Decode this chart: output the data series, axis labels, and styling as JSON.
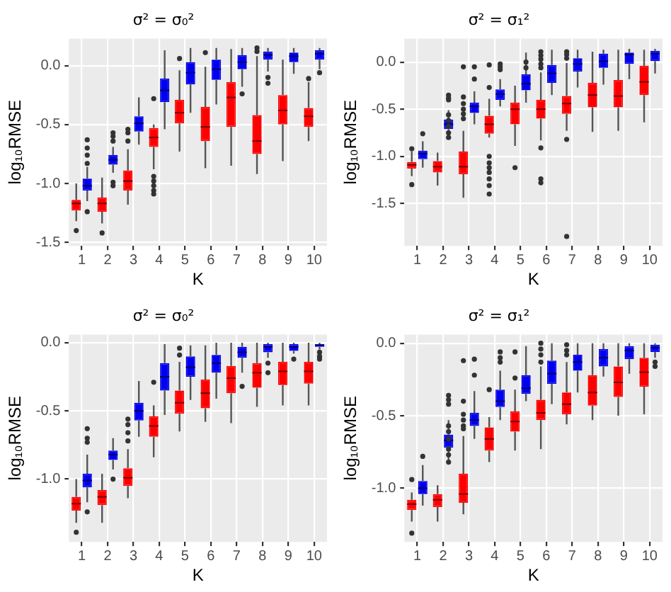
{
  "chart_data": [
    {
      "type": "box",
      "title": "σ² = σ₀²",
      "xlabel": "K",
      "ylabel": "log₁₀RMSE",
      "categories": [
        "1",
        "2",
        "3",
        "4",
        "5",
        "6",
        "7",
        "8",
        "9",
        "10"
      ],
      "ylim": [
        -1.53,
        0.23
      ],
      "yticks": [
        {
          "value": -1.5,
          "label": "-1.5"
        },
        {
          "value": -1,
          "label": "-1.0"
        },
        {
          "value": -0.5,
          "label": "-0.5"
        },
        {
          "value": 0,
          "label": "0.0"
        }
      ],
      "grid": true,
      "series": [
        {
          "color": "#ff0000",
          "boxes": [
            {
              "low": -1.32,
              "q1": -1.23,
              "median": -1.17,
              "q3": -1.14,
              "high": -1.0,
              "outliers": [
                -1.4
              ]
            },
            {
              "low": -1.34,
              "q1": -1.24,
              "median": -1.17,
              "q3": -1.12,
              "high": -0.95,
              "outliers": [
                -1.42
              ]
            },
            {
              "low": -1.18,
              "q1": -1.06,
              "median": -0.98,
              "q3": -0.89,
              "high": -0.71,
              "outliers": [
                -0.54,
                -0.57,
                -0.64
              ]
            },
            {
              "low": -0.88,
              "q1": -0.69,
              "median": -0.61,
              "q3": -0.53,
              "high": -0.5,
              "outliers": [
                -0.28,
                -0.94,
                -0.98,
                -1.02,
                -1.06,
                -1.09
              ]
            },
            {
              "low": -0.73,
              "q1": -0.49,
              "median": -0.4,
              "q3": -0.29,
              "high": -0.04,
              "outliers": [
                0.06
              ]
            },
            {
              "low": -0.87,
              "q1": -0.64,
              "median": -0.52,
              "q3": -0.35,
              "high": -0.01,
              "outliers": [
                0.11
              ]
            },
            {
              "low": -0.85,
              "q1": -0.52,
              "median": -0.27,
              "q3": -0.14,
              "high": 0.14
            },
            {
              "low": -0.92,
              "q1": -0.75,
              "median": -0.64,
              "q3": -0.42,
              "high": 0.08,
              "outliers": [
                0.15,
                0.12
              ]
            },
            {
              "low": -0.81,
              "q1": -0.5,
              "median": -0.38,
              "q3": -0.25,
              "high": 0.05
            },
            {
              "low": -0.64,
              "q1": -0.52,
              "median": -0.43,
              "q3": -0.36,
              "high": -0.14,
              "outliers": [
                -0.11
              ]
            }
          ]
        },
        {
          "color": "#0000ee",
          "boxes": [
            {
              "low": -1.15,
              "q1": -1.06,
              "median": -1.02,
              "q3": -0.96,
              "high": -0.86,
              "outliers": [
                -0.63,
                -0.7,
                -0.76,
                -0.83,
                -1.24
              ]
            },
            {
              "low": -0.91,
              "q1": -0.84,
              "median": -0.8,
              "q3": -0.76,
              "high": -0.69,
              "outliers": [
                -0.57,
                -0.6,
                -0.64,
                -0.99,
                -1.02
              ]
            },
            {
              "low": -0.67,
              "q1": -0.56,
              "median": -0.49,
              "q3": -0.43,
              "high": -0.27
            },
            {
              "low": -0.54,
              "q1": -0.31,
              "median": -0.21,
              "q3": -0.11,
              "high": 0.13
            },
            {
              "low": -0.4,
              "q1": -0.16,
              "median": -0.06,
              "q3": 0.03,
              "high": 0.15
            },
            {
              "low": -0.33,
              "q1": -0.12,
              "median": -0.03,
              "q3": 0.05,
              "high": 0.15
            },
            {
              "low": -0.18,
              "q1": -0.03,
              "median": 0.03,
              "q3": 0.09,
              "high": 0.15,
              "outliers": [
                -0.24
              ]
            },
            {
              "low": -0.05,
              "q1": 0.05,
              "median": 0.09,
              "q3": 0.12,
              "high": 0.15,
              "outliers": [
                -0.1,
                -0.15
              ]
            },
            {
              "low": -0.07,
              "q1": 0.03,
              "median": 0.08,
              "q3": 0.11,
              "high": 0.15
            },
            {
              "low": -0.03,
              "q1": 0.05,
              "median": 0.1,
              "q3": 0.13,
              "high": 0.15,
              "outliers": [
                -0.06
              ]
            }
          ]
        }
      ]
    },
    {
      "type": "box",
      "title": "σ² = σ₁²",
      "xlabel": "K",
      "ylabel": "log₁₀RMSE",
      "categories": [
        "1",
        "2",
        "3",
        "4",
        "5",
        "6",
        "7",
        "8",
        "9",
        "10"
      ],
      "ylim": [
        -1.95,
        0.25
      ],
      "yticks": [
        {
          "value": -1.5,
          "label": "-1.5"
        },
        {
          "value": -1,
          "label": "-1.0"
        },
        {
          "value": -0.5,
          "label": "-0.5"
        },
        {
          "value": 0,
          "label": "0.0"
        }
      ],
      "grid": true,
      "series": [
        {
          "color": "#ff0000",
          "boxes": [
            {
              "low": -1.21,
              "q1": -1.13,
              "median": -1.09,
              "q3": -1.06,
              "high": -0.95,
              "outliers": [
                -0.92,
                -1.3
              ]
            },
            {
              "low": -1.31,
              "q1": -1.17,
              "median": -1.11,
              "q3": -1.05,
              "high": -0.96
            },
            {
              "low": -1.44,
              "q1": -1.19,
              "median": -1.11,
              "q3": -0.95,
              "high": -0.73,
              "outliers": [
                -0.05,
                -0.37,
                -0.44,
                -0.5,
                -0.55,
                -0.6
              ]
            },
            {
              "low": -0.8,
              "q1": -0.76,
              "median": -0.66,
              "q3": -0.57,
              "high": -0.39,
              "outliers": [
                -0.03,
                -0.27,
                -1.0,
                -1.07,
                -1.12,
                -1.17,
                -1.24,
                -1.31,
                -1.4
              ]
            },
            {
              "low": -0.89,
              "q1": -0.66,
              "median": -0.5,
              "q3": -0.43,
              "high": -0.25,
              "outliers": [
                -1.12
              ]
            },
            {
              "low": -0.83,
              "q1": -0.6,
              "median": -0.5,
              "q3": -0.4,
              "high": -0.11,
              "outliers": [
                0.11,
                0.07,
                0.03,
                -0.02,
                -0.06,
                -0.91,
                -1.24,
                -1.28
              ]
            },
            {
              "low": -0.73,
              "q1": -0.55,
              "median": -0.44,
              "q3": -0.36,
              "high": -0.01,
              "outliers": [
                0.11,
                0.08,
                0.04,
                -0.82,
                -1.85
              ]
            },
            {
              "low": -0.74,
              "q1": -0.48,
              "median": -0.35,
              "q3": -0.22,
              "high": 0.11
            },
            {
              "low": -0.73,
              "q1": -0.48,
              "median": -0.36,
              "q3": -0.19,
              "high": 0.13
            },
            {
              "low": -0.64,
              "q1": -0.35,
              "median": -0.21,
              "q3": -0.04,
              "high": 0.13
            }
          ]
        },
        {
          "color": "#0000ee",
          "boxes": [
            {
              "low": -1.12,
              "q1": -1.03,
              "median": -0.97,
              "q3": -0.94,
              "high": -0.84,
              "outliers": [
                -0.76
              ]
            },
            {
              "low": -0.75,
              "q1": -0.71,
              "median": -0.66,
              "q3": -0.61,
              "high": -0.51,
              "outliers": [
                -0.35,
                -0.38,
                -0.4,
                -0.56,
                -0.62,
                -0.68,
                -0.75,
                -0.8
              ]
            },
            {
              "low": -0.66,
              "q1": -0.54,
              "median": -0.47,
              "q3": -0.43,
              "high": -0.31,
              "outliers": [
                -0.05,
                -0.18
              ]
            },
            {
              "low": -0.47,
              "q1": -0.4,
              "median": -0.34,
              "q3": -0.29,
              "high": -0.18,
              "outliers": [
                -0.02,
                -0.05,
                -0.08
              ]
            },
            {
              "low": -0.43,
              "q1": -0.3,
              "median": -0.23,
              "q3": -0.13,
              "high": 0.1,
              "outliers": [
                0,
                -0.06
              ]
            },
            {
              "low": -0.35,
              "q1": -0.22,
              "median": -0.12,
              "q3": -0.03,
              "high": 0.13
            },
            {
              "low": -0.27,
              "q1": -0.1,
              "median": -0.02,
              "q3": 0.04,
              "high": 0.13
            },
            {
              "low": -0.24,
              "q1": -0.06,
              "median": 0.01,
              "q3": 0.09,
              "high": 0.13
            },
            {
              "low": -0.18,
              "q1": -0.02,
              "median": 0.08,
              "q3": 0.1,
              "high": 0.14
            },
            {
              "low": -0.12,
              "q1": 0.01,
              "median": 0.09,
              "q3": 0.12,
              "high": 0.14
            }
          ]
        }
      ]
    },
    {
      "type": "box",
      "title": "σ² = σ₀²",
      "xlabel": "K",
      "ylabel": "log₁₀RMSE",
      "categories": [
        "1",
        "2",
        "3",
        "4",
        "5",
        "6",
        "7",
        "8",
        "9",
        "10"
      ],
      "ylim": [
        -1.46,
        0.06
      ],
      "yticks": [
        {
          "value": -1,
          "label": "-1.0"
        },
        {
          "value": -0.5,
          "label": "-0.5"
        },
        {
          "value": 0,
          "label": "0.0"
        }
      ],
      "grid": true,
      "series": [
        {
          "color": "#ff0000",
          "boxes": [
            {
              "low": -1.32,
              "q1": -1.23,
              "median": -1.18,
              "q3": -1.13,
              "high": -1.0,
              "outliers": [
                -1.39
              ]
            },
            {
              "low": -1.32,
              "q1": -1.19,
              "median": -1.13,
              "q3": -1.08,
              "high": -0.96
            },
            {
              "low": -1.14,
              "q1": -1.05,
              "median": -0.99,
              "q3": -0.92,
              "high": -0.78,
              "outliers": [
                -0.56,
                -0.6,
                -0.66,
                -0.72
              ]
            },
            {
              "low": -0.84,
              "q1": -0.69,
              "median": -0.61,
              "q3": -0.54,
              "high": -0.46,
              "outliers": [
                -0.29
              ]
            },
            {
              "low": -0.65,
              "q1": -0.52,
              "median": -0.44,
              "q3": -0.35,
              "high": -0.14,
              "outliers": [
                -0.04,
                -0.09
              ]
            },
            {
              "low": -0.58,
              "q1": -0.48,
              "median": -0.37,
              "q3": -0.27,
              "high": -0.02
            },
            {
              "low": -0.59,
              "q1": -0.37,
              "median": -0.26,
              "q3": -0.17,
              "high": 0
            },
            {
              "low": -0.47,
              "q1": -0.33,
              "median": -0.22,
              "q3": -0.15,
              "high": 0
            },
            {
              "low": -0.46,
              "q1": -0.31,
              "median": -0.21,
              "q3": -0.14,
              "high": 0
            },
            {
              "low": -0.46,
              "q1": -0.3,
              "median": -0.21,
              "q3": -0.14,
              "high": 0
            }
          ]
        },
        {
          "color": "#0000ee",
          "boxes": [
            {
              "low": -1.17,
              "q1": -1.06,
              "median": -1.01,
              "q3": -0.96,
              "high": -0.82,
              "outliers": [
                -0.63,
                -0.7,
                -0.73,
                -1.24
              ]
            },
            {
              "low": -0.93,
              "q1": -0.86,
              "median": -0.82,
              "q3": -0.79,
              "high": -0.7,
              "outliers": [
                -1.0
              ]
            },
            {
              "low": -0.69,
              "q1": -0.57,
              "median": -0.5,
              "q3": -0.44,
              "high": -0.28
            },
            {
              "low": -0.53,
              "q1": -0.35,
              "median": -0.25,
              "q3": -0.15,
              "high": -0.01
            },
            {
              "low": -0.42,
              "q1": -0.25,
              "median": -0.18,
              "q3": -0.1,
              "high": -0.02
            },
            {
              "low": -0.41,
              "q1": -0.22,
              "median": -0.15,
              "q3": -0.09,
              "high": 0
            },
            {
              "low": -0.22,
              "q1": -0.11,
              "median": -0.07,
              "q3": -0.03,
              "high": 0,
              "outliers": [
                -0.32
              ]
            },
            {
              "low": -0.11,
              "q1": -0.07,
              "median": -0.03,
              "q3": -0.01,
              "high": 0,
              "outliers": [
                -0.15,
                -0.22
              ]
            },
            {
              "low": -0.08,
              "q1": -0.06,
              "median": -0.03,
              "q3": -0.01,
              "high": 0,
              "outliers": [
                -0.12
              ]
            },
            {
              "low": -0.05,
              "q1": -0.03,
              "median": -0.02,
              "q3": -0.01,
              "high": 0,
              "outliers": [
                -0.07,
                -0.1,
                -0.12
              ]
            }
          ]
        }
      ]
    },
    {
      "type": "box",
      "title": "σ² = σ₁²",
      "xlabel": "K",
      "ylabel": "log₁₀RMSE",
      "categories": [
        "1",
        "2",
        "3",
        "4",
        "5",
        "6",
        "7",
        "8",
        "9",
        "10"
      ],
      "ylim": [
        -1.37,
        0.06
      ],
      "yticks": [
        {
          "value": -1,
          "label": "-1.0"
        },
        {
          "value": -0.5,
          "label": "-0.5"
        },
        {
          "value": 0,
          "label": "0.0"
        }
      ],
      "grid": true,
      "series": [
        {
          "color": "#ff0000",
          "boxes": [
            {
              "low": -1.23,
              "q1": -1.15,
              "median": -1.11,
              "q3": -1.08,
              "high": -1.03,
              "outliers": [
                -0.94,
                -1.31
              ]
            },
            {
              "low": -1.23,
              "q1": -1.13,
              "median": -1.08,
              "q3": -1.04,
              "high": -0.98
            },
            {
              "low": -1.18,
              "q1": -1.1,
              "median": -1.04,
              "q3": -0.9,
              "high": -0.64,
              "outliers": [
                -0.12,
                -0.4,
                -0.49,
                -0.53,
                -0.57,
                -0.59
              ]
            },
            {
              "low": -0.82,
              "q1": -0.74,
              "median": -0.66,
              "q3": -0.58,
              "high": -0.51,
              "outliers": [
                -0.32
              ]
            },
            {
              "low": -0.74,
              "q1": -0.61,
              "median": -0.54,
              "q3": -0.47,
              "high": -0.32,
              "outliers": [
                -0.24,
                -0.06
              ]
            },
            {
              "low": -0.73,
              "q1": -0.53,
              "median": -0.48,
              "q3": -0.39,
              "high": -0.16,
              "outliers": [
                0,
                -0.04,
                -0.08,
                -0.13
              ]
            },
            {
              "low": -0.56,
              "q1": -0.49,
              "median": -0.42,
              "q3": -0.34,
              "high": -0.13,
              "outliers": [
                -0.01,
                -0.05,
                -0.08
              ]
            },
            {
              "low": -0.53,
              "q1": -0.43,
              "median": -0.34,
              "q3": -0.22,
              "high": 0
            },
            {
              "low": -0.5,
              "q1": -0.37,
              "median": -0.27,
              "q3": -0.16,
              "high": 0
            },
            {
              "low": -0.49,
              "q1": -0.3,
              "median": -0.2,
              "q3": -0.1,
              "high": 0
            }
          ]
        },
        {
          "color": "#0000ee",
          "boxes": [
            {
              "low": -1.12,
              "q1": -1.04,
              "median": -1.0,
              "q3": -0.95,
              "high": -0.84,
              "outliers": [
                -0.78
              ]
            },
            {
              "low": -0.81,
              "q1": -0.72,
              "median": -0.67,
              "q3": -0.63,
              "high": -0.53,
              "outliers": [
                -0.36,
                -0.39,
                -0.42,
                -0.57,
                -0.61,
                -0.66,
                -0.73,
                -0.77,
                -0.82
              ]
            },
            {
              "low": -0.66,
              "q1": -0.57,
              "median": -0.53,
              "q3": -0.48,
              "high": -0.33,
              "outliers": [
                -0.11,
                -0.22
              ]
            },
            {
              "low": -0.53,
              "q1": -0.44,
              "median": -0.4,
              "q3": -0.32,
              "high": -0.19,
              "outliers": [
                -0.06,
                -0.1,
                -0.13
              ]
            },
            {
              "low": -0.4,
              "q1": -0.35,
              "median": -0.31,
              "q3": -0.22,
              "high": -0.02
            },
            {
              "low": -0.42,
              "q1": -0.28,
              "median": -0.21,
              "q3": -0.12,
              "high": 0
            },
            {
              "low": -0.34,
              "q1": -0.19,
              "median": -0.13,
              "q3": -0.08,
              "high": 0
            },
            {
              "low": -0.23,
              "q1": -0.16,
              "median": -0.1,
              "q3": -0.04,
              "high": 0
            },
            {
              "low": -0.21,
              "q1": -0.11,
              "median": -0.05,
              "q3": -0.02,
              "high": 0
            },
            {
              "low": -0.1,
              "q1": -0.06,
              "median": -0.03,
              "q3": -0.01,
              "high": 0,
              "outliers": [
                -0.13,
                -0.16
              ]
            }
          ]
        }
      ]
    }
  ]
}
